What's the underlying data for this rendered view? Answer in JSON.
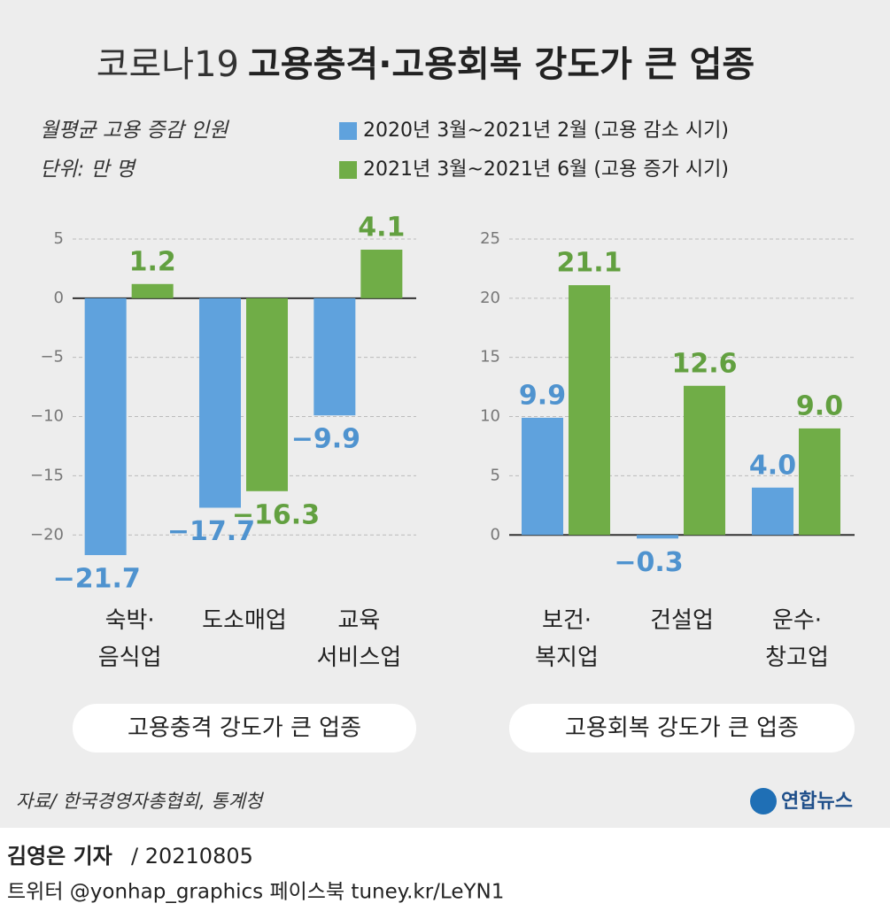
{
  "title_prefix": "코로나19",
  "title": "고용충격·고용회복 강도가 큰 업종",
  "note": "월평균 고용 증감 인원",
  "unit": "단위: 만 명",
  "source": "자료/ 한국경영자총협회, 통계청",
  "logo": "연합뉴스",
  "byline": {
    "author": "김영은 기자",
    "date": "/ 20210805"
  },
  "social": "트위터 @yonhap_graphics  페이스북 tuney.kr/LeYN1",
  "chart_data": [
    {
      "type": "bar",
      "caption": "고용충격 강도가 큰 업종",
      "categories": [
        "숙박·\n음식업",
        "도소매업",
        "교육\n서비스업"
      ],
      "series": [
        {
          "name": "2020년 3월~2021년 2월 (고용 감소 시기)",
          "color": "#5fa2dd",
          "label_color": "#4f93cf",
          "values": [
            -21.7,
            -17.7,
            -9.9
          ],
          "value_labels": [
            "−21.7",
            "−17.7",
            "−9.9"
          ]
        },
        {
          "name": "2021년 3월~2021년 6월 (고용 증가 시기)",
          "color": "#70ad47",
          "label_color": "#62a040",
          "values": [
            1.2,
            -16.3,
            4.1
          ],
          "value_labels": [
            "1.2",
            "−16.3",
            "4.1"
          ]
        }
      ],
      "ylim": [
        -22,
        6
      ],
      "yticks": [
        5,
        0,
        {
          "value": -5,
          "label": "−5"
        },
        {
          "value": -10,
          "label": "−10"
        },
        {
          "value": -15,
          "label": "−15"
        },
        {
          "value": -20,
          "label": "−20"
        }
      ],
      "grid": true
    },
    {
      "type": "bar",
      "caption": "고용회복 강도가 큰 업종",
      "categories": [
        "보건·\n복지업",
        "건설업",
        "운수·\n창고업"
      ],
      "series": [
        {
          "name": "2020년 3월~2021년 2월 (고용 감소 시기)",
          "color": "#5fa2dd",
          "label_color": "#4f93cf",
          "values": [
            9.9,
            -0.3,
            4.0
          ],
          "value_labels": [
            "9.9",
            "−0.3",
            "4.0"
          ]
        },
        {
          "name": "2021년 3월~2021년 6월 (고용 증가 시기)",
          "color": "#70ad47",
          "label_color": "#62a040",
          "values": [
            21.1,
            12.6,
            9.0
          ],
          "value_labels": [
            "21.1",
            "12.6",
            "9.0"
          ]
        }
      ],
      "ylim": [
        -2,
        26
      ],
      "yticks": [
        0,
        5,
        10,
        15,
        20,
        25
      ],
      "grid": true
    }
  ]
}
